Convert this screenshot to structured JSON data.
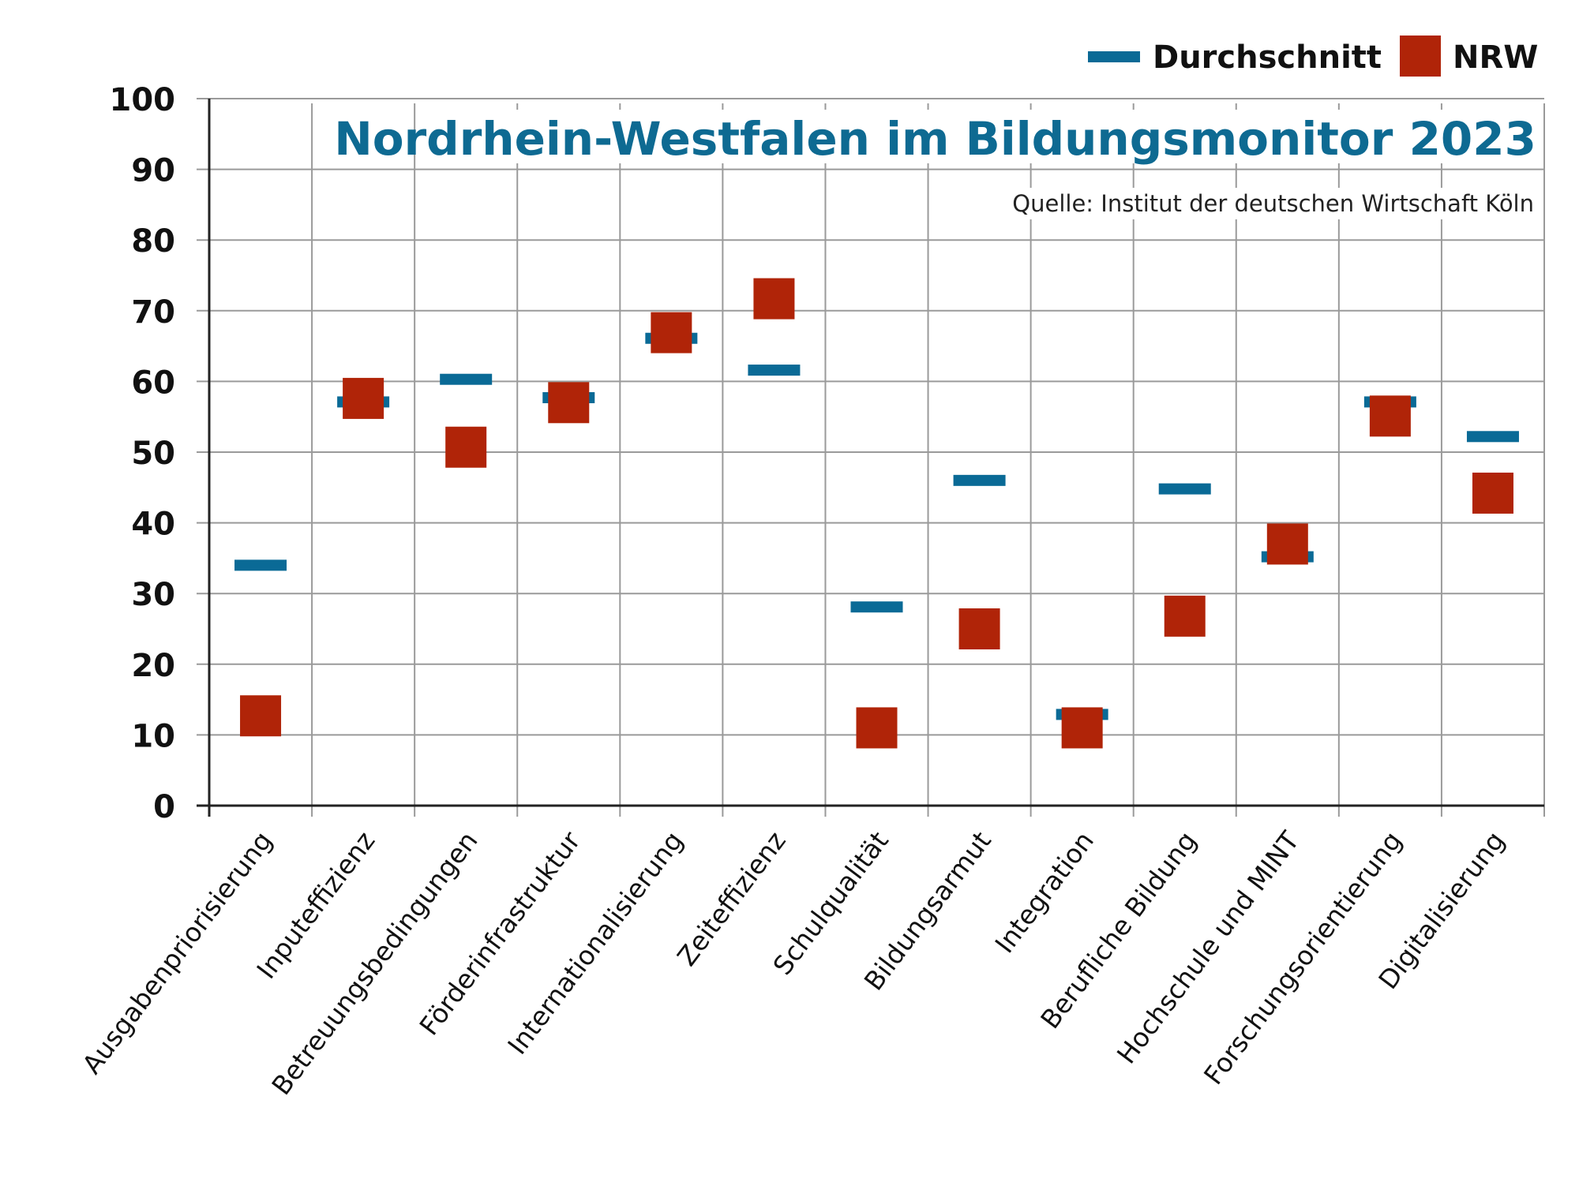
{
  "chart_data": {
    "type": "scatter",
    "title": "Nordrhein-Westfalen im Bildungsmonitor 2023",
    "source": "Quelle: Institut der deutschen Wirtschaft Köln",
    "xlabel": "",
    "ylabel": "",
    "ylim": [
      0,
      100
    ],
    "yticks": [
      "0",
      "10",
      "20",
      "30",
      "40",
      "50",
      "60",
      "70",
      "80",
      "90",
      "100"
    ],
    "grid": true,
    "legend_position": "top-right",
    "categories": [
      "Ausgabenpriorisierung",
      "Inputeffizienz",
      "Betreuungsbedingungen",
      "Förderinfrastruktur",
      "Internationalisierung",
      "Zeiteffizienz",
      "Schulqualität",
      "Bildungsarmut",
      "Integration",
      "Berufliche Bildung",
      "Hochschule und MINT",
      "Forschungsorientierung",
      "Digitalisierung"
    ],
    "series": [
      {
        "name": "Durchschnitt",
        "marker": "dash",
        "color": "#0a6a96",
        "values": [
          34.0,
          57.1,
          60.3,
          57.7,
          66.1,
          61.6,
          28.1,
          46.0,
          12.9,
          44.8,
          35.2,
          57.1,
          52.2
        ]
      },
      {
        "name": "NRW",
        "marker": "square",
        "color": "#b02408",
        "values": [
          12.7,
          57.6,
          50.7,
          57.0,
          66.9,
          71.7,
          11.0,
          25.0,
          11.0,
          26.8,
          37.0,
          55.1,
          44.2
        ]
      }
    ]
  },
  "colors": {
    "grid": "#9a9a9a",
    "axis": "#222222",
    "title": "#0e6a92"
  }
}
